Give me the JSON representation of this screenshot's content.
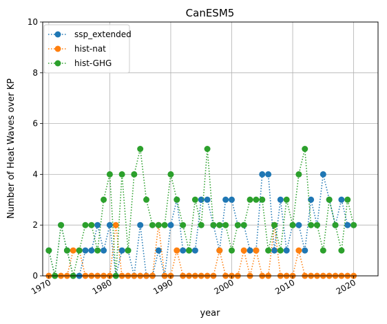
{
  "chart_data": {
    "type": "line",
    "title": "CanESM5",
    "xlabel": "year",
    "ylabel": "Number of Heat Waves over KP",
    "xlim": [
      1969,
      2024
    ],
    "ylim": [
      0,
      10
    ],
    "xticks": [
      "1970",
      "1980",
      "1990",
      "2000",
      "2010",
      "2020"
    ],
    "xtick_values": [
      1970,
      1980,
      1990,
      2000,
      2010,
      2020
    ],
    "yticks": [
      "0",
      "2",
      "4",
      "6",
      "8",
      "10"
    ],
    "ytick_values": [
      0,
      2,
      4,
      6,
      8,
      10
    ],
    "grid": true,
    "legend_position": "top-left",
    "line_style": "dotted",
    "marker": "circle",
    "x": [
      1970,
      1971,
      1972,
      1973,
      1974,
      1975,
      1976,
      1977,
      1978,
      1979,
      1980,
      1981,
      1982,
      1983,
      1984,
      1985,
      1986,
      1987,
      1988,
      1989,
      1990,
      1991,
      1992,
      1993,
      1994,
      1995,
      1996,
      1997,
      1998,
      1999,
      2000,
      2001,
      2002,
      2003,
      2004,
      2005,
      2006,
      2007,
      2008,
      2009,
      2010,
      2011,
      2012,
      2013,
      2014,
      2015,
      2016,
      2017,
      2018,
      2019,
      2020
    ],
    "series": [
      {
        "name": "ssp_extended",
        "color": "#1f77b4",
        "values": [
          1,
          0,
          2,
          1,
          0,
          0,
          1,
          1,
          2,
          1,
          2,
          0,
          1,
          1,
          0,
          2,
          0,
          0,
          1,
          0,
          2,
          3,
          1,
          1,
          1,
          3,
          3,
          2,
          1,
          3,
          3,
          2,
          2,
          1,
          1,
          4,
          4,
          1,
          3,
          1,
          2,
          2,
          1,
          3,
          2,
          4,
          3,
          2,
          3,
          2,
          2
        ]
      },
      {
        "name": "hist-nat",
        "color": "#ff7f0e",
        "values": [
          0,
          0,
          0,
          0,
          1,
          1,
          0,
          0,
          0,
          0,
          0,
          2,
          0,
          0,
          0,
          0,
          0,
          0,
          2,
          0,
          0,
          1,
          0,
          0,
          0,
          0,
          0,
          0,
          1,
          0,
          0,
          0,
          1,
          0,
          1,
          0,
          0,
          2,
          0,
          0,
          0,
          1,
          0,
          0,
          0,
          0,
          0,
          0,
          0,
          0,
          0
        ]
      },
      {
        "name": "hist-GHG",
        "color": "#2ca02c",
        "values": [
          1,
          0,
          2,
          1,
          0,
          1,
          2,
          2,
          1,
          3,
          4,
          0,
          4,
          1,
          4,
          5,
          3,
          2,
          2,
          2,
          4,
          3,
          2,
          1,
          3,
          2,
          5,
          2,
          2,
          2,
          1,
          2,
          2,
          3,
          3,
          3,
          1,
          2,
          1,
          3,
          2,
          4,
          5,
          2,
          2,
          1,
          3,
          2,
          1,
          3,
          2
        ]
      }
    ]
  }
}
